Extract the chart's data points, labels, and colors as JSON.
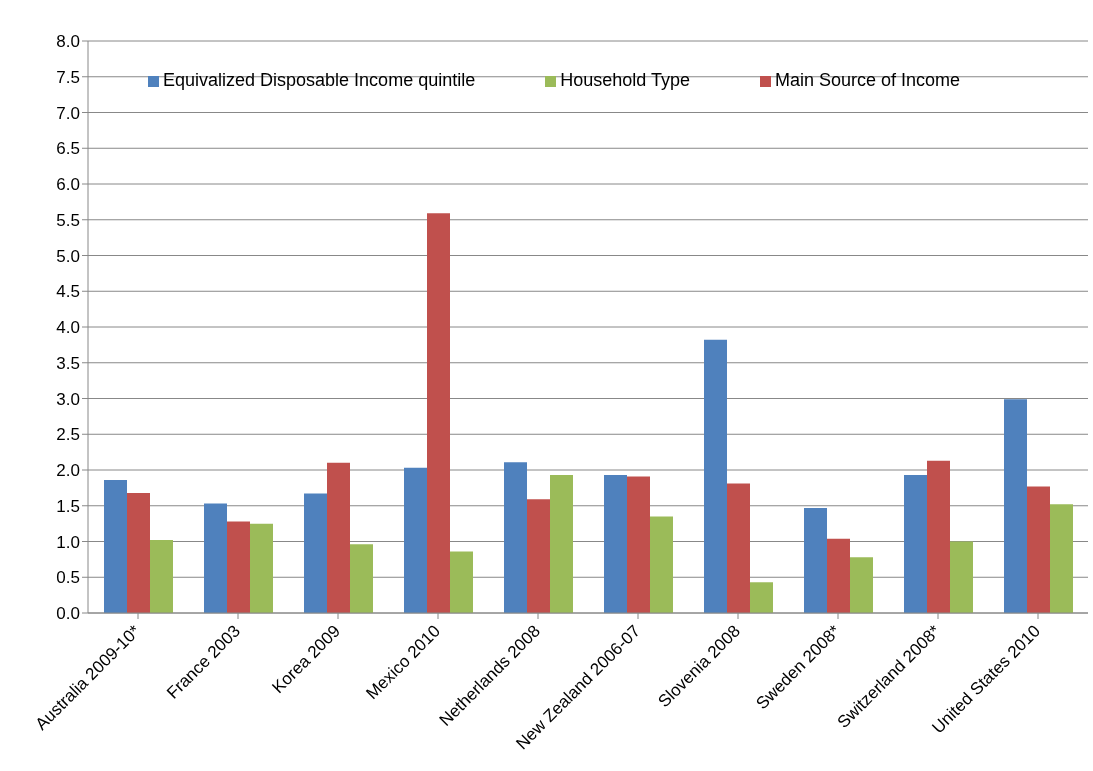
{
  "chart_data": {
    "type": "bar",
    "categories": [
      "Australia 2009-10*",
      "France 2003",
      "Korea 2009",
      "Mexico 2010",
      "Netherlands 2008",
      "New Zealand 2006-07",
      "Slovenia 2008",
      "Sweden 2008*",
      "Switzerland 2008*",
      "United States 2010"
    ],
    "series": [
      {
        "name": "Equivalized Disposable Income quintile",
        "color": "#4f81bd",
        "values": [
          1.86,
          1.53,
          1.67,
          2.03,
          2.11,
          1.93,
          3.82,
          1.47,
          1.93,
          2.99
        ]
      },
      {
        "name": "Main Source of Income",
        "color": "#c0504d",
        "values": [
          1.68,
          1.28,
          2.1,
          5.59,
          1.59,
          1.91,
          1.81,
          1.04,
          2.13,
          1.77
        ]
      },
      {
        "name": "Household Type",
        "color": "#9bbb59",
        "values": [
          1.02,
          1.25,
          0.96,
          0.86,
          1.93,
          1.35,
          0.43,
          0.78,
          1.0,
          1.52
        ]
      }
    ],
    "ylim": [
      0,
      8
    ],
    "yticks": [
      {
        "value": 0,
        "label": "0.0"
      },
      {
        "value": 0.5,
        "label": "0.5"
      },
      {
        "value": 1,
        "label": "1.0"
      },
      {
        "value": 1.5,
        "label": "1.5"
      },
      {
        "value": 2,
        "label": "2.0"
      },
      {
        "value": 2.5,
        "label": "2.5"
      },
      {
        "value": 3,
        "label": "3.0"
      },
      {
        "value": 3.5,
        "label": "3.5"
      },
      {
        "value": 4,
        "label": "4.0"
      },
      {
        "value": 4.5,
        "label": "4.5"
      },
      {
        "value": 5,
        "label": "5.0"
      },
      {
        "value": 5.5,
        "label": "5.5"
      },
      {
        "value": 6,
        "label": "6.0"
      },
      {
        "value": 6.5,
        "label": "6.5"
      },
      {
        "value": 7,
        "label": "7.0"
      },
      {
        "value": 7.5,
        "label": "7.5"
      },
      {
        "value": 8,
        "label": "8.0"
      }
    ],
    "grid": "y",
    "legend": "top"
  }
}
